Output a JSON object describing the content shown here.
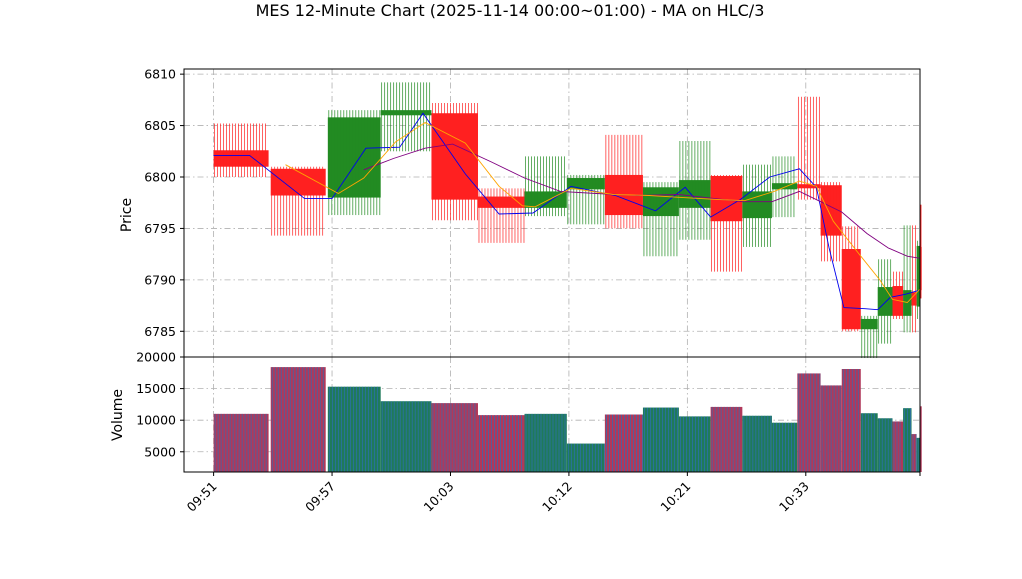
{
  "chart_data": {
    "type": "candlestick",
    "title": "MES 12-Minute Chart (2025-11-14 00:00~01:00) - MA on HLC/3",
    "price_panel": {
      "ylabel": "Price",
      "ylim": [
        6782.5,
        6810.5
      ],
      "yticks": [
        6785,
        6790,
        6795,
        6800,
        6805,
        6810
      ]
    },
    "volume_panel": {
      "ylabel": "Volume",
      "ylim": [
        1800,
        20000
      ],
      "yticks": [
        5000,
        10000,
        15000,
        20000
      ]
    },
    "xlim": [
      -0.7,
      16.7
    ],
    "xticks": [
      {
        "x": 0,
        "label": "09:51"
      },
      {
        "x": 2.8,
        "label": "09:57"
      },
      {
        "x": 5.6,
        "label": "10:03"
      },
      {
        "x": 8.4,
        "label": "10:12"
      },
      {
        "x": 11.2,
        "label": "10:21"
      },
      {
        "x": 14.0,
        "label": "10:33"
      },
      {
        "x": 16.7,
        "label": ""
      }
    ],
    "grid": true,
    "colors": {
      "up": "#228B22",
      "down": "#FF2020",
      "ma_fast": "#0000EE",
      "ma_mid": "#FFA500",
      "ma_slow": "#800080",
      "volume_edge": "#2E6FB5"
    },
    "candles": [
      {
        "x": 0.0,
        "w": 1.3,
        "open": 6802.6,
        "high": 6805.2,
        "low": 6800.0,
        "close": 6801.0,
        "volume": 11000
      },
      {
        "x": 1.35,
        "w": 1.3,
        "open": 6800.8,
        "high": 6801.0,
        "low": 6794.3,
        "close": 6798.2,
        "volume": 18400
      },
      {
        "x": 2.7,
        "w": 1.25,
        "open": 6798.0,
        "high": 6806.5,
        "low": 6796.3,
        "close": 6805.8,
        "volume": 15300
      },
      {
        "x": 3.95,
        "w": 1.2,
        "open": 6806.0,
        "high": 6809.2,
        "low": 6802.5,
        "close": 6806.5,
        "volume": 13000
      },
      {
        "x": 5.15,
        "w": 1.1,
        "open": 6806.2,
        "high": 6807.2,
        "low": 6795.8,
        "close": 6797.8,
        "volume": 12700
      },
      {
        "x": 6.25,
        "w": 1.1,
        "open": 6798.1,
        "high": 6798.9,
        "low": 6793.6,
        "close": 6797.0,
        "volume": 10800
      },
      {
        "x": 7.35,
        "w": 1.0,
        "open": 6797.0,
        "high": 6802.0,
        "low": 6796.2,
        "close": 6798.6,
        "volume": 11000
      },
      {
        "x": 8.35,
        "w": 0.9,
        "open": 6798.8,
        "high": 6800.2,
        "low": 6795.4,
        "close": 6799.9,
        "volume": 6300
      },
      {
        "x": 9.25,
        "w": 0.9,
        "open": 6800.2,
        "high": 6804.1,
        "low": 6795.0,
        "close": 6796.3,
        "volume": 10900
      },
      {
        "x": 10.15,
        "w": 0.85,
        "open": 6796.2,
        "high": 6799.5,
        "low": 6792.3,
        "close": 6799.0,
        "volume": 12000
      },
      {
        "x": 11.0,
        "w": 0.75,
        "open": 6797.0,
        "high": 6803.5,
        "low": 6793.9,
        "close": 6799.7,
        "volume": 10600
      },
      {
        "x": 11.75,
        "w": 0.75,
        "open": 6800.1,
        "high": 6800.2,
        "low": 6790.8,
        "close": 6795.7,
        "volume": 12100
      },
      {
        "x": 12.5,
        "w": 0.7,
        "open": 6796.0,
        "high": 6801.2,
        "low": 6793.2,
        "close": 6798.6,
        "volume": 10700
      },
      {
        "x": 13.2,
        "w": 0.6,
        "open": 6798.8,
        "high": 6802.0,
        "low": 6796.1,
        "close": 6799.4,
        "volume": 9600
      },
      {
        "x": 13.8,
        "w": 0.55,
        "open": 6799.3,
        "high": 6807.8,
        "low": 6797.8,
        "close": 6798.9,
        "volume": 17400
      },
      {
        "x": 14.35,
        "w": 0.5,
        "open": 6799.2,
        "high": 6799.5,
        "low": 6791.8,
        "close": 6794.3,
        "volume": 15500
      },
      {
        "x": 14.85,
        "w": 0.45,
        "open": 6793.0,
        "high": 6795.2,
        "low": 6785.0,
        "close": 6785.2,
        "volume": 18100
      },
      {
        "x": 15.3,
        "w": 0.4,
        "open": 6785.2,
        "high": 6786.5,
        "low": 6782.4,
        "close": 6786.2,
        "volume": 11100
      },
      {
        "x": 15.7,
        "w": 0.35,
        "open": 6786.5,
        "high": 6792.0,
        "low": 6783.8,
        "close": 6789.3,
        "volume": 10300
      },
      {
        "x": 16.05,
        "w": 0.25,
        "open": 6789.4,
        "high": 6790.8,
        "low": 6786.2,
        "close": 6786.5,
        "volume": 9800
      },
      {
        "x": 16.3,
        "w": 0.2,
        "open": 6786.5,
        "high": 6795.3,
        "low": 6784.9,
        "close": 6789.0,
        "volume": 11900
      },
      {
        "x": 16.5,
        "w": 0.12,
        "open": 6788.8,
        "high": 6795.3,
        "low": 6784.9,
        "close": 6787.5,
        "volume": 7800
      },
      {
        "x": 16.62,
        "w": 0.08,
        "open": 6787.4,
        "high": 6793.8,
        "low": 6786.2,
        "close": 6793.3,
        "volume": 7200
      },
      {
        "x": 16.7,
        "w": 0.04,
        "open": 6793.2,
        "high": 6797.3,
        "low": 6788.2,
        "close": 6789.0,
        "volume": 12200
      }
    ],
    "ma_fast": {
      "x": [
        0.0,
        0.85,
        2.15,
        2.8,
        3.6,
        4.4,
        4.95,
        5.95,
        6.75,
        7.55,
        8.45,
        9.5,
        10.45,
        11.15,
        11.75,
        12.45,
        13.15,
        13.85,
        14.25,
        14.55,
        14.9,
        15.4,
        15.7,
        16.0,
        16.35,
        16.7
      ],
      "y": [
        6802.1,
        6802.1,
        6797.9,
        6797.9,
        6802.8,
        6802.9,
        6806.2,
        6800.3,
        6796.4,
        6796.5,
        6799.1,
        6798.2,
        6796.7,
        6799.0,
        6796.1,
        6797.8,
        6800.0,
        6800.8,
        6799.0,
        6793.1,
        6787.3,
        6787.2,
        6787.1,
        6788.3,
        6788.6,
        6789.0
      ]
    },
    "ma_mid": {
      "x": [
        1.7,
        2.95,
        3.55,
        4.3,
        5.0,
        5.95,
        6.75,
        7.3,
        7.6,
        8.45,
        9.45,
        10.3,
        11.1,
        11.95,
        12.55,
        13.25,
        13.85,
        14.25,
        14.65,
        15.3,
        15.75,
        16.05,
        16.4,
        16.7
      ],
      "y": [
        6801.2,
        6798.4,
        6799.9,
        6803.4,
        6805.3,
        6803.3,
        6799.1,
        6797.2,
        6797.1,
        6798.9,
        6798.3,
        6798.2,
        6798.0,
        6797.8,
        6797.7,
        6798.6,
        6799.6,
        6799.1,
        6795.7,
        6792.3,
        6790.0,
        6788.1,
        6787.8,
        6789.1
      ]
    },
    "ma_slow": {
      "x": [
        3.55,
        4.25,
        5.0,
        5.65,
        6.55,
        7.35,
        8.2,
        9.05,
        10.05,
        11.0,
        11.85,
        12.5,
        13.2,
        13.85,
        14.35,
        14.85,
        15.45,
        15.95,
        16.4,
        16.7
      ],
      "y": [
        6800.7,
        6801.8,
        6802.8,
        6803.2,
        6801.5,
        6799.9,
        6798.6,
        6798.4,
        6798.2,
        6798.3,
        6797.9,
        6797.6,
        6797.6,
        6798.6,
        6797.6,
        6796.6,
        6794.5,
        6793.1,
        6792.3,
        6792.1
      ]
    }
  }
}
